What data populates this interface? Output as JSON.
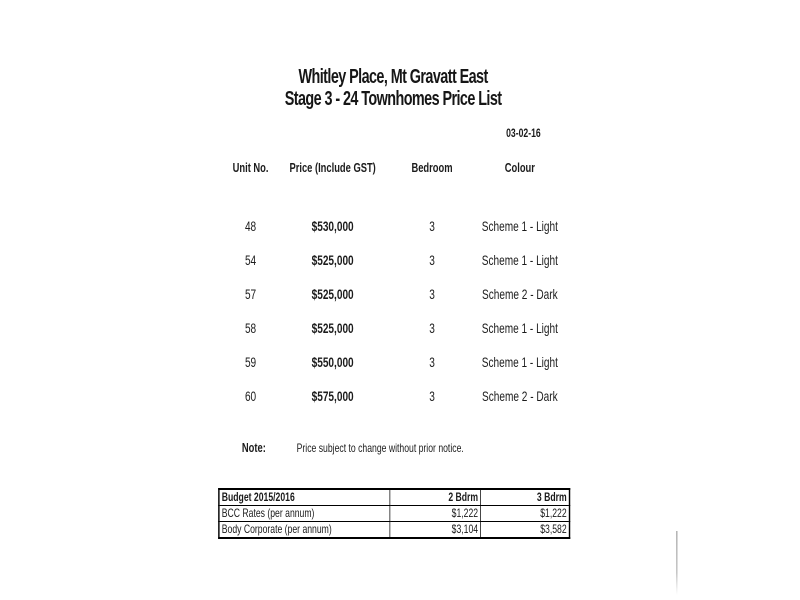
{
  "document": {
    "title_line1": "Whitley Place, Mt Gravatt East",
    "title_line2": "Stage 3 - 24 Townhomes Price List",
    "date": "03-02-16",
    "columns": {
      "unit": "Unit No.",
      "price": "Price (Include GST)",
      "bedroom": "Bedroom",
      "colour": "Colour"
    },
    "rows": [
      {
        "unit": "48",
        "price": "$530,000",
        "bedroom": "3",
        "colour": "Scheme 1 - Light"
      },
      {
        "unit": "54",
        "price": "$525,000",
        "bedroom": "3",
        "colour": "Scheme 1 - Light"
      },
      {
        "unit": "57",
        "price": "$525,000",
        "bedroom": "3",
        "colour": "Scheme 2 - Dark"
      },
      {
        "unit": "58",
        "price": "$525,000",
        "bedroom": "3",
        "colour": "Scheme 1 - Light"
      },
      {
        "unit": "59",
        "price": "$550,000",
        "bedroom": "3",
        "colour": "Scheme 1 - Light"
      },
      {
        "unit": "60",
        "price": "$575,000",
        "bedroom": "3",
        "colour": "Scheme 2 - Dark"
      }
    ],
    "note": {
      "label": "Note:",
      "text": "Price subject to change without prior notice."
    },
    "budget_table": {
      "header": {
        "title": "Budget 2015/2016",
        "col2": "2 Bdrm",
        "col3": "3 Bdrm"
      },
      "rows": [
        {
          "label": "BCC Rates (per annum)",
          "v2": "$1,222",
          "v3": "$1,222"
        },
        {
          "label": "Body Corporate (per annum)",
          "v2": "$3,104",
          "v3": "$3,582"
        }
      ]
    },
    "colors": {
      "page_background": "#ffffff",
      "text": "#1c1c1c",
      "table_border": "#000000"
    }
  }
}
